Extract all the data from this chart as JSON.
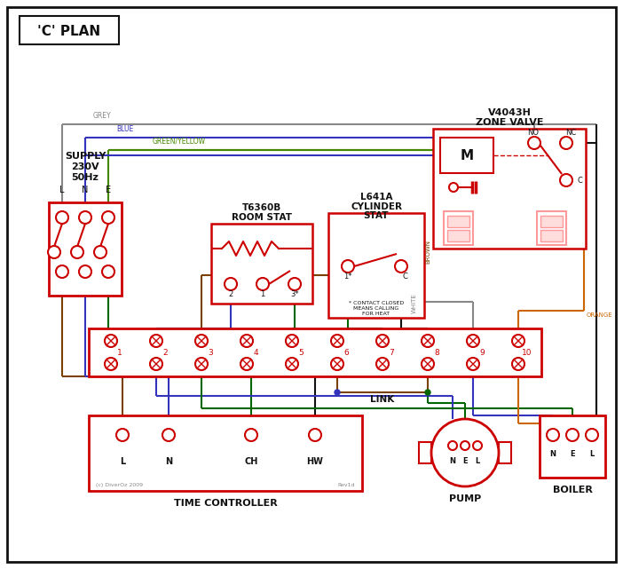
{
  "bg": "#ffffff",
  "red": "#cc0000",
  "blue": "#3333bb",
  "green": "#006600",
  "brown": "#7a4000",
  "grey": "#888888",
  "orange": "#cc6600",
  "green_yellow": "#448800",
  "black": "#111111",
  "pink": "#ff9999",
  "light_red": "#ffdddd",
  "title": "'C' PLAN",
  "supply_text1": "SUPPLY",
  "supply_text2": "230V",
  "supply_text3": "50Hz",
  "lne": "L   N   E",
  "zone_title1": "V4043H",
  "zone_title2": "ZONE VALVE",
  "rs_title1": "T6360B",
  "rs_title2": "ROOM STAT",
  "cs_title1": "L641A",
  "cs_title2": "CYLINDER",
  "cs_title3": "STAT",
  "cs_note": "* CONTACT CLOSED\nMEANS CALLING\nFOR HEAT",
  "tc_label": "TIME CONTROLLER",
  "pump_label": "PUMP",
  "boiler_label": "BOILER",
  "link_label": "LINK",
  "copyright": "(c) DiverOz 2009",
  "rev": "Rev1d",
  "grey_label": "GREY",
  "blue_label": "BLUE",
  "gy_label": "GREEN/YELLOW",
  "brown_label": "BROWN",
  "white_label": "WHITE",
  "orange_label": "ORANGE"
}
